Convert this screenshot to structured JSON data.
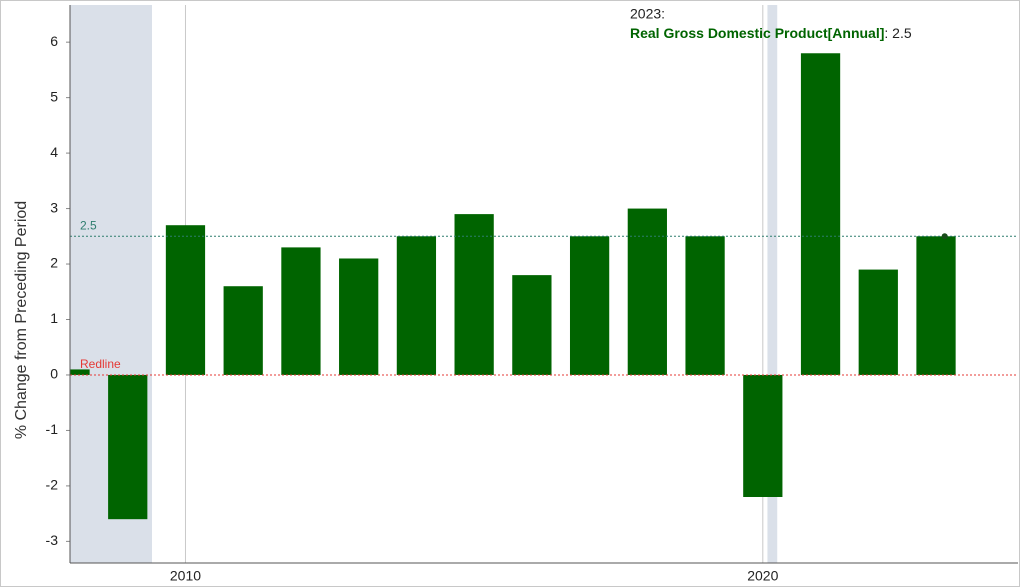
{
  "chart_data": {
    "type": "bar",
    "y_label": "% Change from Preceding Period",
    "x": [
      2008,
      2009,
      2010,
      2011,
      2012,
      2013,
      2014,
      2015,
      2016,
      2017,
      2018,
      2019,
      2020,
      2021,
      2022,
      2023
    ],
    "series": [
      {
        "name": "Real Gross Domestic Product[Annual]",
        "color": "#006400",
        "values": [
          0.1,
          -2.6,
          2.7,
          1.6,
          2.3,
          2.1,
          2.5,
          2.9,
          1.8,
          2.5,
          3.0,
          2.5,
          -2.2,
          5.8,
          1.9,
          2.5
        ]
      }
    ],
    "xlim": [
      2008,
      2024.42
    ],
    "ylim": [
      -3.39,
      6.67
    ],
    "xticks": [
      2010,
      2020
    ],
    "yticks": [
      -3,
      -2,
      -1,
      0,
      1,
      2,
      3,
      4,
      5,
      6
    ],
    "x_grid": true,
    "shaded_ranges": [
      [
        2008,
        2009.42
      ],
      [
        2020.08,
        2020.25
      ]
    ],
    "shade_color": "#dae0e9",
    "reference_lines": [
      {
        "value": 2.5,
        "label": "2.5",
        "color": "#2e7d6e"
      },
      {
        "value": 0,
        "label": "Redline",
        "color": "#e53935"
      }
    ],
    "tooltip": {
      "title": "2023:",
      "text": ": 2.5"
    }
  }
}
